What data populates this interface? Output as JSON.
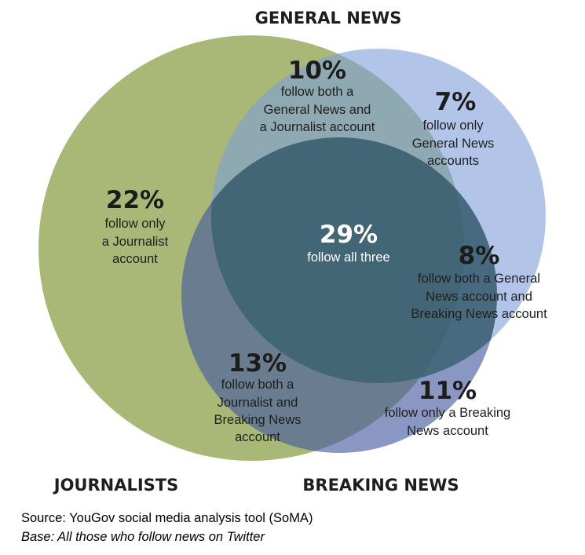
{
  "circles": {
    "journalists": {
      "label": "JOURNALISTS",
      "color": "#9aac5e"
    },
    "general_news": {
      "label": "GENERAL NEWS",
      "color": "#7e9fda"
    },
    "breaking_news": {
      "label": "BREAKING NEWS",
      "color": "#44579e"
    }
  },
  "regions": {
    "journalist_only": {
      "pct": "22%",
      "lines": [
        "follow only",
        "a Journalist",
        "account"
      ]
    },
    "general_only": {
      "pct": "7%",
      "lines": [
        "follow only",
        "General News",
        "accounts"
      ]
    },
    "journalist_general": {
      "pct": "10%",
      "lines": [
        "follow both a",
        "General News and",
        "a Journalist account"
      ]
    },
    "all_three": {
      "pct": "29%",
      "lines": [
        "follow all three"
      ]
    },
    "general_breaking": {
      "pct": "8%",
      "lines": [
        "follow both a General",
        "News account and",
        "Breaking News account"
      ]
    },
    "journalist_breaking": {
      "pct": "13%",
      "lines": [
        "follow both a",
        "Journalist and",
        "Breaking News",
        "account"
      ]
    },
    "breaking_only": {
      "pct": "11%",
      "lines": [
        "follow only a Breaking",
        "News account"
      ]
    }
  },
  "footer": {
    "source": "Source: YouGov social media analysis tool (SoMA)",
    "base": "Base: All those who follow news on Twitter"
  }
}
